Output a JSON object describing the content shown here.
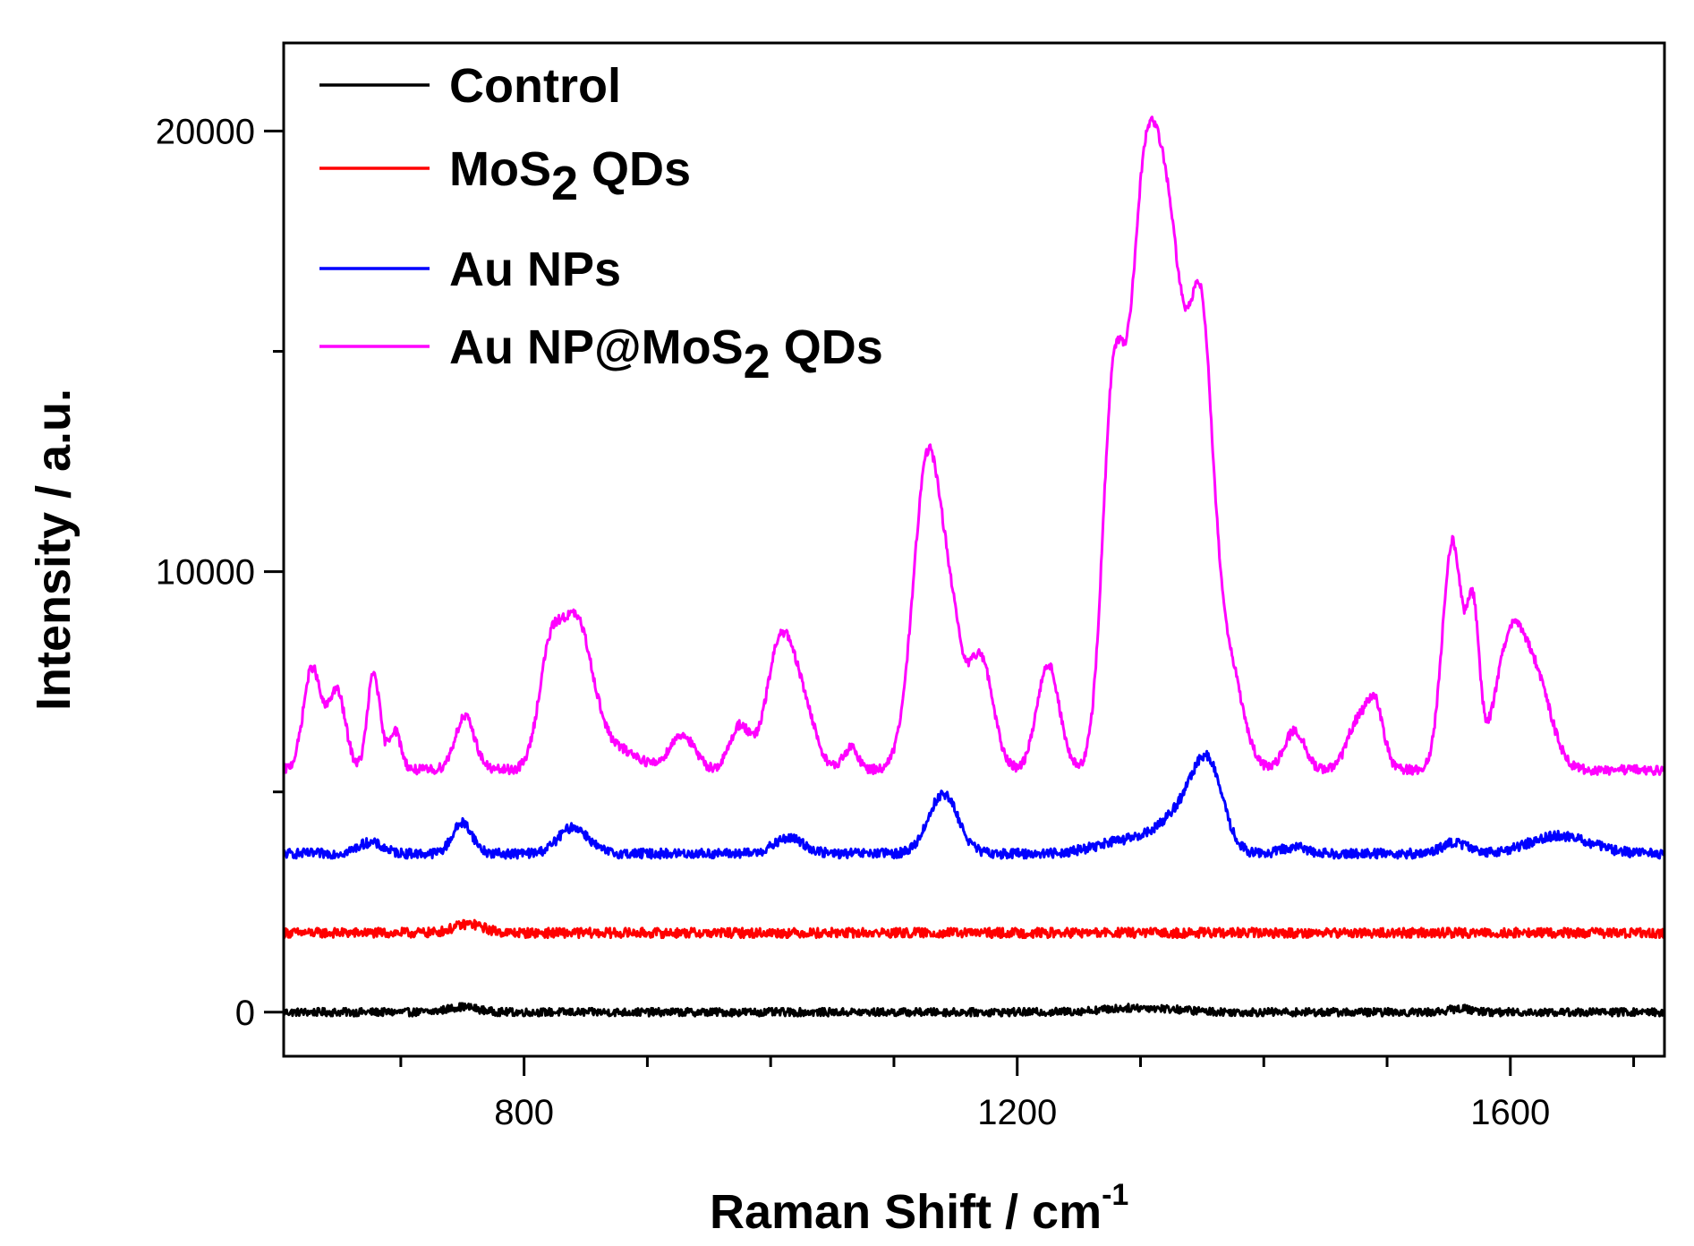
{
  "chart_data": {
    "type": "line",
    "xlabel": "Raman Shift / cm",
    "xlabel_superscript": "-1",
    "ylabel": "Intensity / a.u.",
    "xlim": [
      605,
      1725
    ],
    "ylim": [
      -1000,
      22000
    ],
    "x_ticks": [
      800,
      1200,
      1600
    ],
    "y_ticks": [
      0,
      10000,
      20000
    ],
    "legend_position": "top-left",
    "series": [
      {
        "name": "Control",
        "label_parts": [
          {
            "text": "Control"
          }
        ],
        "color": "#000000",
        "baseline": 0,
        "noise": 90,
        "peaks": [
          [
            750,
            120,
            12
          ],
          [
            1300,
            100,
            30
          ],
          [
            1560,
            80,
            10
          ]
        ]
      },
      {
        "name": "MoS2 QDs",
        "label_parts": [
          {
            "text": "MoS"
          },
          {
            "text": "2",
            "sub": true
          },
          {
            "text": " QDs"
          }
        ],
        "color": "#ff0000",
        "baseline": 1800,
        "noise": 110,
        "peaks": [
          [
            755,
            200,
            12
          ]
        ]
      },
      {
        "name": "Au NPs",
        "label_parts": [
          {
            "text": "Au NPs"
          }
        ],
        "color": "#0000ff",
        "baseline": 3600,
        "noise": 110,
        "peaks": [
          [
            675,
            250,
            10
          ],
          [
            750,
            700,
            8
          ],
          [
            840,
            600,
            12
          ],
          [
            1015,
            350,
            12
          ],
          [
            1140,
            1350,
            12
          ],
          [
            1290,
            300,
            25
          ],
          [
            1335,
            900,
            18
          ],
          [
            1355,
            1700,
            12
          ],
          [
            1425,
            150,
            10
          ],
          [
            1555,
            250,
            10
          ],
          [
            1640,
            400,
            25
          ]
        ]
      },
      {
        "name": "Au NP@MoS2 QDs",
        "label_parts": [
          {
            "text": "Au NP@MoS"
          },
          {
            "text": "2",
            "sub": true
          },
          {
            "text": " QDs"
          }
        ],
        "color": "#ff00ff",
        "baseline": 5500,
        "noise": 110,
        "peaks": [
          [
            628,
            2300,
            7
          ],
          [
            648,
            1800,
            7
          ],
          [
            678,
            2200,
            5
          ],
          [
            695,
            900,
            5
          ],
          [
            752,
            1200,
            8
          ],
          [
            820,
            2000,
            9
          ],
          [
            842,
            3400,
            14
          ],
          [
            880,
            400,
            15
          ],
          [
            928,
            800,
            10
          ],
          [
            975,
            1000,
            8
          ],
          [
            1008,
            2900,
            11
          ],
          [
            1027,
            1200,
            10
          ],
          [
            1065,
            500,
            6
          ],
          [
            1128,
            7200,
            12
          ],
          [
            1148,
            2000,
            8
          ],
          [
            1170,
            2600,
            10
          ],
          [
            1225,
            2400,
            9
          ],
          [
            1278,
            8200,
            9
          ],
          [
            1300,
            6500,
            10
          ],
          [
            1320,
            12800,
            17
          ],
          [
            1350,
            7500,
            9
          ],
          [
            1370,
            2500,
            12
          ],
          [
            1425,
            900,
            8
          ],
          [
            1475,
            1000,
            8
          ],
          [
            1490,
            1500,
            7
          ],
          [
            1553,
            5200,
            8
          ],
          [
            1570,
            3300,
            5
          ],
          [
            1600,
            2900,
            12
          ],
          [
            1622,
            1800,
            12
          ]
        ]
      }
    ]
  }
}
